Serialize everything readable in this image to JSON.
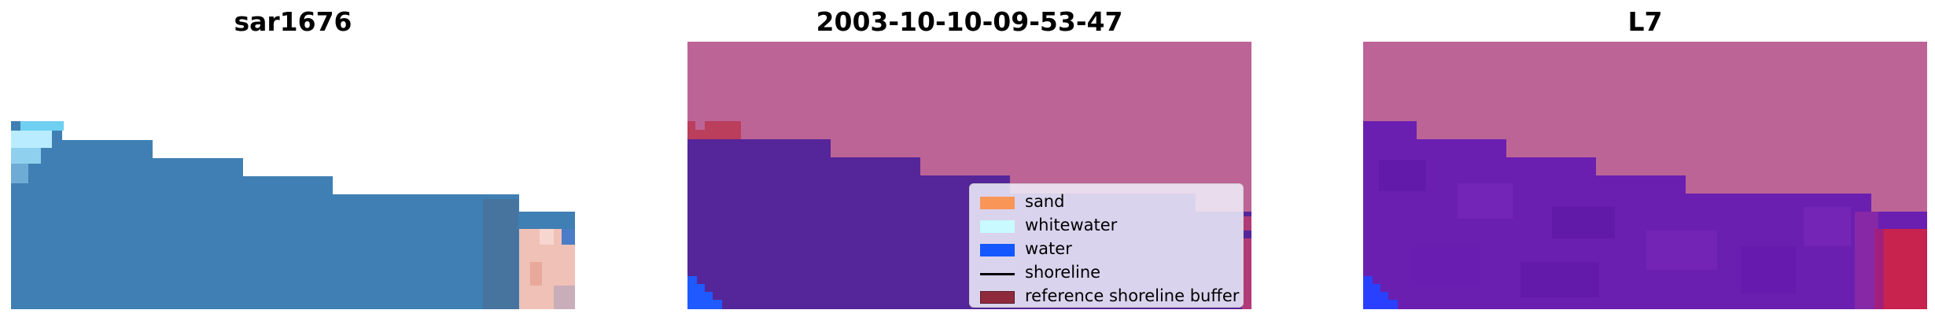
{
  "panels": [
    {
      "title": "sar1676"
    },
    {
      "title": "2003-10-10-09-53-47"
    },
    {
      "title": "L7"
    }
  ],
  "legend": [
    {
      "label": "sand",
      "color": "#ff8a3d",
      "kind": "patch"
    },
    {
      "label": "whitewater",
      "color": "#c8faff",
      "kind": "patch"
    },
    {
      "label": "water",
      "color": "#1457ff",
      "kind": "patch"
    },
    {
      "label": "shoreline",
      "color": "#000000",
      "kind": "line"
    },
    {
      "label": "reference shoreline buffer",
      "color": "#8f2a3d",
      "kind": "patch"
    }
  ],
  "colors": {
    "land_overlay": "#bd6497",
    "water_class": "#55259a",
    "water_pure": "#1f5aff",
    "buffer": "#bb3e5c",
    "rgb_water": "#3f7fb3",
    "rgb_whitewater": "#a8e6ff",
    "rgb_sand": "#f0c1b6"
  }
}
